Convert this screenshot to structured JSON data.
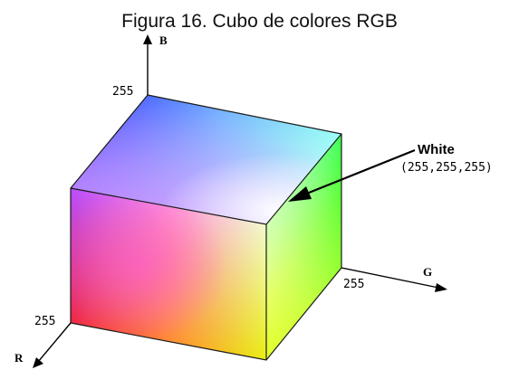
{
  "figure": {
    "title": "Figura 16. Cubo de colores RGB"
  },
  "axes": {
    "b_label": "B",
    "b_tick": "255",
    "g_label": "G",
    "g_tick": "255",
    "r_label": "R",
    "r_tick": "255"
  },
  "callout": {
    "label": "White",
    "value": "(255,255,255)"
  },
  "colors": {
    "red": "#ff0000",
    "green": "#00ff00",
    "blue": "#0000ff",
    "white": "#ffffff",
    "yellow": "#ffff00",
    "magenta": "#ff00ff",
    "cyan": "#00ffff"
  }
}
